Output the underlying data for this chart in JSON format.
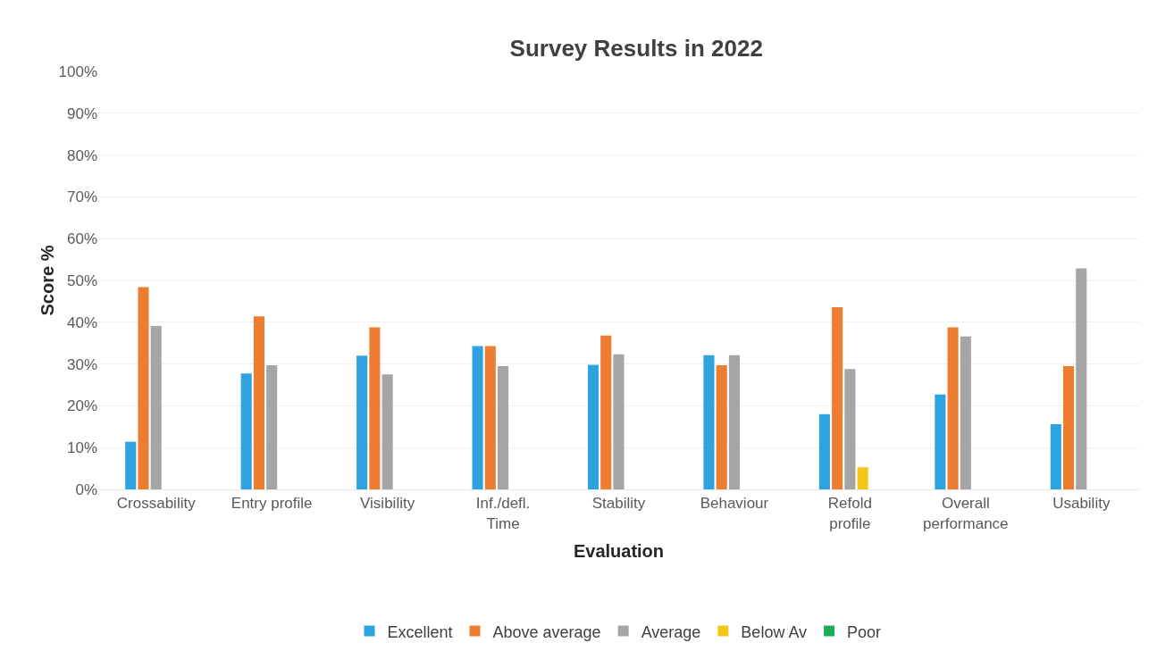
{
  "chart_data": {
    "type": "bar",
    "title": "Survey Results in 2022",
    "xlabel": "Evaluation",
    "ylabel": "Score %",
    "categories": [
      "Crossability",
      "Entry profile",
      "Visibility",
      "Inf./defl.\nTime",
      "Stability",
      "Behaviour",
      "Refold\nprofile",
      "Overall\nperformance",
      "Usability"
    ],
    "series": [
      {
        "name": "Excellent",
        "color": "#2ea3e0",
        "values": [
          11.4,
          27.7,
          32,
          34.3,
          29.8,
          32.1,
          18,
          22.7,
          15.6
        ]
      },
      {
        "name": "Above average",
        "color": "#ed7d31",
        "values": [
          48.4,
          41.4,
          38.8,
          34.3,
          36.8,
          29.7,
          43.6,
          38.8,
          29.5
        ]
      },
      {
        "name": "Average",
        "color": "#a5a5a5",
        "values": [
          39.1,
          29.7,
          27.5,
          29.5,
          32.3,
          32.1,
          28.8,
          36.6,
          52.9
        ]
      },
      {
        "name": "Below Av",
        "color": "#f5c518",
        "values": [
          0,
          0,
          0,
          0,
          0,
          0,
          5.3,
          0,
          0
        ]
      },
      {
        "name": "Poor",
        "color": "#1faa5a",
        "values": [
          0,
          0,
          0,
          0,
          0,
          0,
          0,
          0,
          0
        ]
      }
    ],
    "ylim": [
      0,
      100
    ],
    "yticks": [
      {
        "value": 0,
        "label": "0%"
      },
      {
        "value": 10,
        "label": "10%"
      },
      {
        "value": 20,
        "label": "20%"
      },
      {
        "value": 30,
        "label": "30%"
      },
      {
        "value": 40,
        "label": "40%"
      },
      {
        "value": 50,
        "label": "50%"
      },
      {
        "value": 60,
        "label": "60%"
      },
      {
        "value": 70,
        "label": "70%"
      },
      {
        "value": 80,
        "label": "80%"
      },
      {
        "value": 90,
        "label": "90%"
      },
      {
        "value": 100,
        "label": "100%"
      }
    ],
    "grid": "y",
    "legend": "bottom"
  }
}
